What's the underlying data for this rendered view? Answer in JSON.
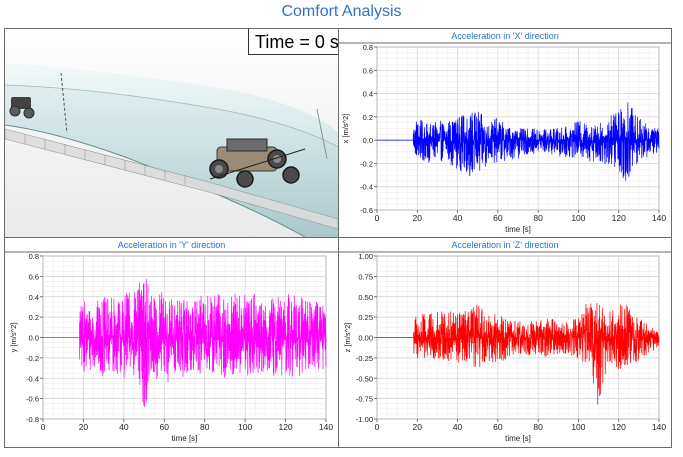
{
  "page_title": "Comfort Analysis",
  "animation": {
    "time_label": "Time = 0 s"
  },
  "colors": {
    "title": "#2e73c4",
    "x_series": "#0000ff",
    "y_series": "#ff00ff",
    "z_series": "#ff0000"
  },
  "chart_data": [
    {
      "type": "line",
      "title": "Acceleration in 'X' direction",
      "xlabel": "time [s]",
      "ylabel": "x [m/s^2]",
      "xlim": [
        0,
        140
      ],
      "ylim": [
        -0.6,
        0.8
      ],
      "xticks": [
        0,
        20,
        40,
        60,
        80,
        100,
        120,
        140
      ],
      "xtick_labels": [
        "0",
        "20",
        "40",
        "60",
        "80",
        "100",
        "120",
        "140"
      ],
      "yticks": [
        -0.6,
        -0.4,
        -0.2,
        0.0,
        0.2,
        0.4,
        0.6,
        0.8
      ],
      "ytick_labels": [
        "-0.6",
        "-0.4",
        "-0.2",
        "0.0",
        "0.2",
        "0.4",
        "0.6",
        "0.8"
      ],
      "grid": true,
      "color": "#0000ff",
      "onset_time": 18,
      "envelope": [
        [
          18,
          -0.1,
          0.2
        ],
        [
          20,
          -0.18,
          0.2
        ],
        [
          25,
          -0.2,
          0.14
        ],
        [
          30,
          -0.17,
          0.16
        ],
        [
          35,
          -0.2,
          0.18
        ],
        [
          40,
          -0.25,
          0.2
        ],
        [
          45,
          -0.3,
          0.24
        ],
        [
          50,
          -0.38,
          0.27
        ],
        [
          55,
          -0.2,
          0.15
        ],
        [
          60,
          -0.2,
          0.2
        ],
        [
          65,
          -0.17,
          0.12
        ],
        [
          70,
          -0.16,
          0.1
        ],
        [
          75,
          -0.12,
          0.1
        ],
        [
          80,
          -0.12,
          0.1
        ],
        [
          85,
          -0.12,
          0.1
        ],
        [
          90,
          -0.14,
          0.11
        ],
        [
          95,
          -0.15,
          0.12
        ],
        [
          100,
          -0.16,
          0.17
        ],
        [
          105,
          -0.18,
          0.14
        ],
        [
          110,
          -0.2,
          0.14
        ],
        [
          115,
          -0.22,
          0.2
        ],
        [
          120,
          -0.25,
          0.3
        ],
        [
          123,
          -0.38,
          0.44
        ],
        [
          126,
          -0.3,
          0.3
        ],
        [
          130,
          -0.18,
          0.2
        ],
        [
          135,
          -0.14,
          0.12
        ],
        [
          140,
          -0.1,
          0.1
        ]
      ]
    },
    {
      "type": "line",
      "title": "Acceleration in 'Y' direction",
      "xlabel": "time [s]",
      "ylabel": "y [m/s^2]",
      "xlim": [
        0,
        140
      ],
      "ylim": [
        -0.8,
        0.8
      ],
      "xticks": [
        0,
        20,
        40,
        60,
        80,
        100,
        120,
        140
      ],
      "xtick_labels": [
        "0",
        "20",
        "40",
        "60",
        "80",
        "100",
        "120",
        "140"
      ],
      "yticks": [
        -0.8,
        -0.6,
        -0.4,
        -0.2,
        0.0,
        0.2,
        0.4,
        0.6,
        0.8
      ],
      "ytick_labels": [
        "-0.8",
        "-0.6",
        "-0.4",
        "-0.2",
        "0.0",
        "0.2",
        "0.4",
        "0.6",
        "0.8"
      ],
      "grid": true,
      "color": "#ff00ff",
      "onset_time": 18,
      "envelope": [
        [
          18,
          -0.3,
          0.3
        ],
        [
          20,
          -0.35,
          0.36
        ],
        [
          25,
          -0.32,
          0.34
        ],
        [
          30,
          -0.4,
          0.4
        ],
        [
          35,
          -0.35,
          0.4
        ],
        [
          40,
          -0.4,
          0.45
        ],
        [
          45,
          -0.38,
          0.46
        ],
        [
          50,
          -0.7,
          0.64
        ],
        [
          55,
          -0.45,
          0.45
        ],
        [
          60,
          -0.5,
          0.46
        ],
        [
          65,
          -0.4,
          0.4
        ],
        [
          70,
          -0.4,
          0.42
        ],
        [
          75,
          -0.35,
          0.4
        ],
        [
          80,
          -0.4,
          0.42
        ],
        [
          85,
          -0.42,
          0.5
        ],
        [
          90,
          -0.4,
          0.44
        ],
        [
          95,
          -0.45,
          0.45
        ],
        [
          100,
          -0.4,
          0.42
        ],
        [
          105,
          -0.38,
          0.44
        ],
        [
          110,
          -0.35,
          0.38
        ],
        [
          115,
          -0.4,
          0.42
        ],
        [
          120,
          -0.38,
          0.42
        ],
        [
          125,
          -0.4,
          0.45
        ],
        [
          130,
          -0.38,
          0.4
        ],
        [
          135,
          -0.35,
          0.38
        ],
        [
          140,
          -0.3,
          0.3
        ]
      ]
    },
    {
      "type": "line",
      "title": "Acceleration in 'Z' direction",
      "xlabel": "time [s]",
      "ylabel": "z [m/s^2]",
      "xlim": [
        0,
        140
      ],
      "ylim": [
        -1.0,
        1.0
      ],
      "xticks": [
        0,
        20,
        40,
        60,
        80,
        100,
        120,
        140
      ],
      "xtick_labels": [
        "0",
        "20",
        "40",
        "60",
        "80",
        "100",
        "120",
        "140"
      ],
      "yticks": [
        -1.0,
        -0.75,
        -0.5,
        -0.25,
        0.0,
        0.25,
        0.5,
        0.75,
        1.0
      ],
      "ytick_labels": [
        "-1.00",
        "-0.75",
        "-0.50",
        "-0.25",
        "0.00",
        "0.25",
        "0.50",
        "0.75",
        "1.00"
      ],
      "grid": true,
      "color": "#ff0000",
      "onset_time": 18,
      "envelope": [
        [
          18,
          -0.25,
          0.3
        ],
        [
          20,
          -0.3,
          0.28
        ],
        [
          25,
          -0.32,
          0.3
        ],
        [
          30,
          -0.28,
          0.32
        ],
        [
          35,
          -0.3,
          0.32
        ],
        [
          40,
          -0.38,
          0.35
        ],
        [
          45,
          -0.3,
          0.32
        ],
        [
          50,
          -0.4,
          0.42
        ],
        [
          55,
          -0.3,
          0.3
        ],
        [
          60,
          -0.32,
          0.3
        ],
        [
          65,
          -0.28,
          0.22
        ],
        [
          70,
          -0.25,
          0.2
        ],
        [
          75,
          -0.22,
          0.2
        ],
        [
          80,
          -0.22,
          0.22
        ],
        [
          85,
          -0.25,
          0.25
        ],
        [
          90,
          -0.22,
          0.2
        ],
        [
          95,
          -0.2,
          0.2
        ],
        [
          100,
          -0.28,
          0.28
        ],
        [
          105,
          -0.32,
          0.5
        ],
        [
          110,
          -0.88,
          0.42
        ],
        [
          115,
          -0.3,
          0.32
        ],
        [
          120,
          -0.45,
          0.35
        ],
        [
          123,
          -0.35,
          0.75
        ],
        [
          126,
          -0.4,
          0.3
        ],
        [
          130,
          -0.3,
          0.25
        ],
        [
          135,
          -0.2,
          0.15
        ],
        [
          140,
          -0.12,
          0.1
        ]
      ]
    }
  ]
}
